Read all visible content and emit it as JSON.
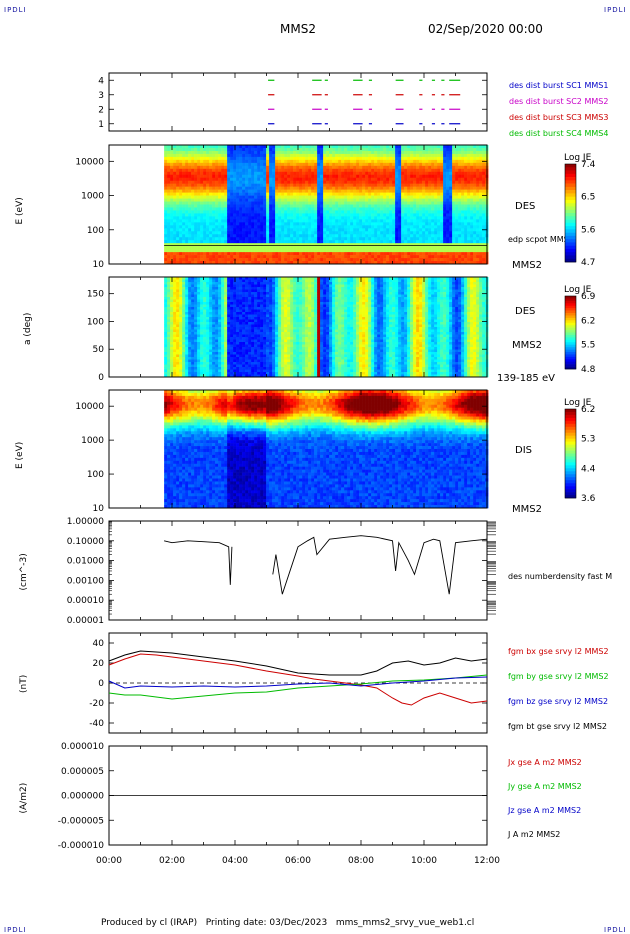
{
  "corner_tag": "IPDLI",
  "header": {
    "spacecraft": "MMS2",
    "date_time": "02/Sep/2020 00:00"
  },
  "footer": {
    "produced_by": "Produced by cl (IRAP)",
    "printing_date": "Printing date: 03/Dec/2023",
    "filename": "mms_mms2_srvy_vue_web1.cl"
  },
  "colors": {
    "blue": "#0000c8",
    "magenta": "#c800c8",
    "red": "#cc0000",
    "green": "#00bb00",
    "black": "#000000"
  },
  "chart_data": [
    {
      "type": "timeline",
      "panel": "burst",
      "ylim": [
        0.5,
        4.5
      ],
      "yticks": [
        1,
        2,
        3,
        4
      ],
      "series": [
        {
          "name": "des dist burst SC1 MMS1",
          "level": 1,
          "color": "#0000c8"
        },
        {
          "name": "des dist burst SC2 MMS2",
          "level": 2,
          "color": "#c800c8"
        },
        {
          "name": "des dist burst SC3 MMS3",
          "level": 3,
          "color": "#cc0000"
        },
        {
          "name": "des dist burst SC4 MMS4",
          "level": 4,
          "color": "#00bb00"
        }
      ],
      "intervals_hours": [
        [
          5.05,
          5.25
        ],
        [
          6.45,
          6.75
        ],
        [
          6.85,
          6.95
        ],
        [
          7.75,
          8.05
        ],
        [
          8.25,
          8.35
        ],
        [
          9.1,
          9.35
        ],
        [
          9.85,
          9.95
        ],
        [
          10.25,
          10.35
        ],
        [
          10.55,
          10.65
        ],
        [
          10.8,
          11.15
        ]
      ]
    },
    {
      "type": "heatmap",
      "panel": "des_energy",
      "ylabel": "E (eV)",
      "scale": "log",
      "ylim": [
        10,
        30000
      ],
      "yticks": [
        10,
        100,
        1000,
        10000
      ],
      "ytick_labels": [
        "10",
        "100",
        "1000",
        "10000"
      ],
      "label": "DES",
      "extra_label": "edp scpot MMS2",
      "sc_label": "MMS2",
      "colorbar": {
        "title": "Log JE",
        "min": 4.7,
        "max": 7.5,
        "ticks": [
          "7.4",
          "6.5",
          "5.6",
          "4.7"
        ]
      },
      "data_start_hours": 1.75,
      "low_flux_intervals_hours": [
        [
          3.75,
          4.95
        ],
        [
          5.0,
          5.2
        ],
        [
          6.55,
          6.72
        ],
        [
          9.05,
          9.25
        ],
        [
          10.6,
          10.85
        ]
      ],
      "scpot_V": 35
    },
    {
      "type": "heatmap",
      "panel": "des_pitch",
      "ylabel": "a (deg)",
      "ylim": [
        0,
        180
      ],
      "yticks": [
        0,
        50,
        100,
        150
      ],
      "ytick_labels": [
        "0",
        "50",
        "100",
        "150"
      ],
      "label": "DES",
      "sc_label": "MMS2",
      "energy_label": "139-185 eV",
      "colorbar": {
        "title": "Log JE",
        "min": 4.8,
        "max": 7.0,
        "ticks": [
          "6.9",
          "6.2",
          "5.5",
          "4.8"
        ]
      },
      "data_start_hours": 1.75
    },
    {
      "type": "heatmap",
      "panel": "dis_energy",
      "ylabel": "E (eV)",
      "scale": "log",
      "ylim": [
        10,
        30000
      ],
      "yticks": [
        10,
        100,
        1000,
        10000
      ],
      "ytick_labels": [
        "10",
        "100",
        "1000",
        "10000"
      ],
      "label": "DIS",
      "sc_label": "MMS2",
      "colorbar": {
        "title": "Log JE",
        "min": 3.6,
        "max": 6.3,
        "ticks": [
          "6.2",
          "5.3",
          "4.4",
          "3.6"
        ]
      },
      "data_start_hours": 1.75
    },
    {
      "type": "line",
      "panel": "density",
      "ylabel": "(cm^-3)",
      "scale": "log",
      "ylim": [
        1e-05,
        1.0
      ],
      "ytick_labels": [
        "1.00000",
        "0.10000",
        "0.01000",
        "0.00100",
        "0.00010",
        "0.00001"
      ],
      "series": [
        {
          "name": "des numberdensity fast M",
          "color": "#000000",
          "x": [
            1.75,
            2.0,
            2.5,
            3.0,
            3.5,
            3.8,
            3.85,
            3.9,
            4.5,
            5.0,
            5.2,
            5.3,
            5.5,
            6.0,
            6.3,
            6.5,
            6.6,
            7.0,
            7.5,
            8.0,
            8.5,
            9.0,
            9.1,
            9.2,
            9.5,
            9.7,
            10.0,
            10.3,
            10.5,
            10.8,
            11.0,
            11.5,
            12.0
          ],
          "y": [
            0.1,
            0.08,
            0.1,
            0.09,
            0.08,
            0.05,
            0.0006,
            0.05,
            null,
            null,
            0.002,
            0.02,
            0.0002,
            0.05,
            0.1,
            0.15,
            0.02,
            0.12,
            0.15,
            0.18,
            0.15,
            0.1,
            0.003,
            0.08,
            0.01,
            0.002,
            0.08,
            0.12,
            0.1,
            0.0002,
            0.08,
            0.1,
            0.12
          ]
        }
      ]
    },
    {
      "type": "line",
      "panel": "magnetic_field",
      "ylabel": "(nT)",
      "ylim": [
        -50,
        50
      ],
      "yticks": [
        -40,
        -20,
        0,
        20,
        40
      ],
      "series": [
        {
          "name": "fgm bx gse srvy l2 MMS2",
          "color": "#cc0000",
          "x": [
            0,
            0.5,
            1.0,
            1.5,
            2.0,
            3.0,
            4.0,
            5.0,
            6.0,
            6.5,
            7.0,
            7.5,
            8.0,
            8.5,
            9.0,
            9.3,
            9.6,
            10.0,
            10.5,
            11.0,
            11.5,
            12.0
          ],
          "y": [
            18,
            24,
            29,
            28,
            26,
            22,
            18,
            12,
            7,
            4,
            2,
            0,
            -2,
            -5,
            -15,
            -20,
            -22,
            -15,
            -10,
            -15,
            -20,
            -18
          ]
        },
        {
          "name": "fgm by gse srvy l2 MMS2",
          "color": "#00bb00",
          "x": [
            0,
            0.5,
            1.0,
            2.0,
            3.0,
            4.0,
            5.0,
            6.0,
            7.0,
            8.0,
            9.0,
            10.0,
            11.0,
            12.0
          ],
          "y": [
            -10,
            -12,
            -12,
            -16,
            -13,
            -10,
            -9,
            -5,
            -3,
            -1,
            2,
            3,
            5,
            8
          ]
        },
        {
          "name": "fgm bz gse srvy l2 MMS2",
          "color": "#0000c8",
          "x": [
            0,
            0.5,
            1.0,
            2.0,
            3.0,
            4.0,
            5.0,
            6.0,
            7.0,
            8.0,
            9.0,
            10.0,
            11.0,
            12.0
          ],
          "y": [
            2,
            -5,
            -3,
            -4,
            -3,
            -4,
            -3,
            -1,
            0,
            -3,
            0,
            2,
            5,
            6
          ]
        },
        {
          "name": "fgm bt gse srvy l2 MMS2",
          "color": "#000000",
          "x": [
            0,
            0.5,
            1.0,
            1.5,
            2.0,
            3.0,
            4.0,
            5.0,
            6.0,
            7.0,
            8.0,
            8.5,
            9.0,
            9.5,
            10.0,
            10.5,
            11.0,
            11.5,
            12.0
          ],
          "y": [
            22,
            28,
            32,
            31,
            30,
            26,
            22,
            17,
            10,
            8,
            8,
            12,
            20,
            22,
            18,
            20,
            25,
            22,
            24
          ]
        }
      ]
    },
    {
      "type": "line",
      "panel": "current_density",
      "ylabel": "(A/m2)",
      "ylim": [
        -1e-05,
        1e-05
      ],
      "ytick_labels": [
        "0.000010",
        "0.000005",
        "0.000000",
        "-0.000005",
        "-0.000010"
      ],
      "series": [
        {
          "name": "Jx gse A m2 MMS2",
          "color": "#cc0000"
        },
        {
          "name": "Jy gse A m2 MMS2",
          "color": "#00bb00"
        },
        {
          "name": "Jz gse A m2 MMS2",
          "color": "#0000c8"
        },
        {
          "name": "J A m2 MMS2",
          "color": "#000000"
        }
      ],
      "x": [
        0,
        12
      ],
      "y": [
        0,
        0
      ]
    }
  ],
  "x_axis": {
    "min_hours": 0,
    "max_hours": 12,
    "tick_labels": [
      "00:00",
      "02:00",
      "04:00",
      "06:00",
      "08:00",
      "10:00",
      "12:00"
    ]
  }
}
